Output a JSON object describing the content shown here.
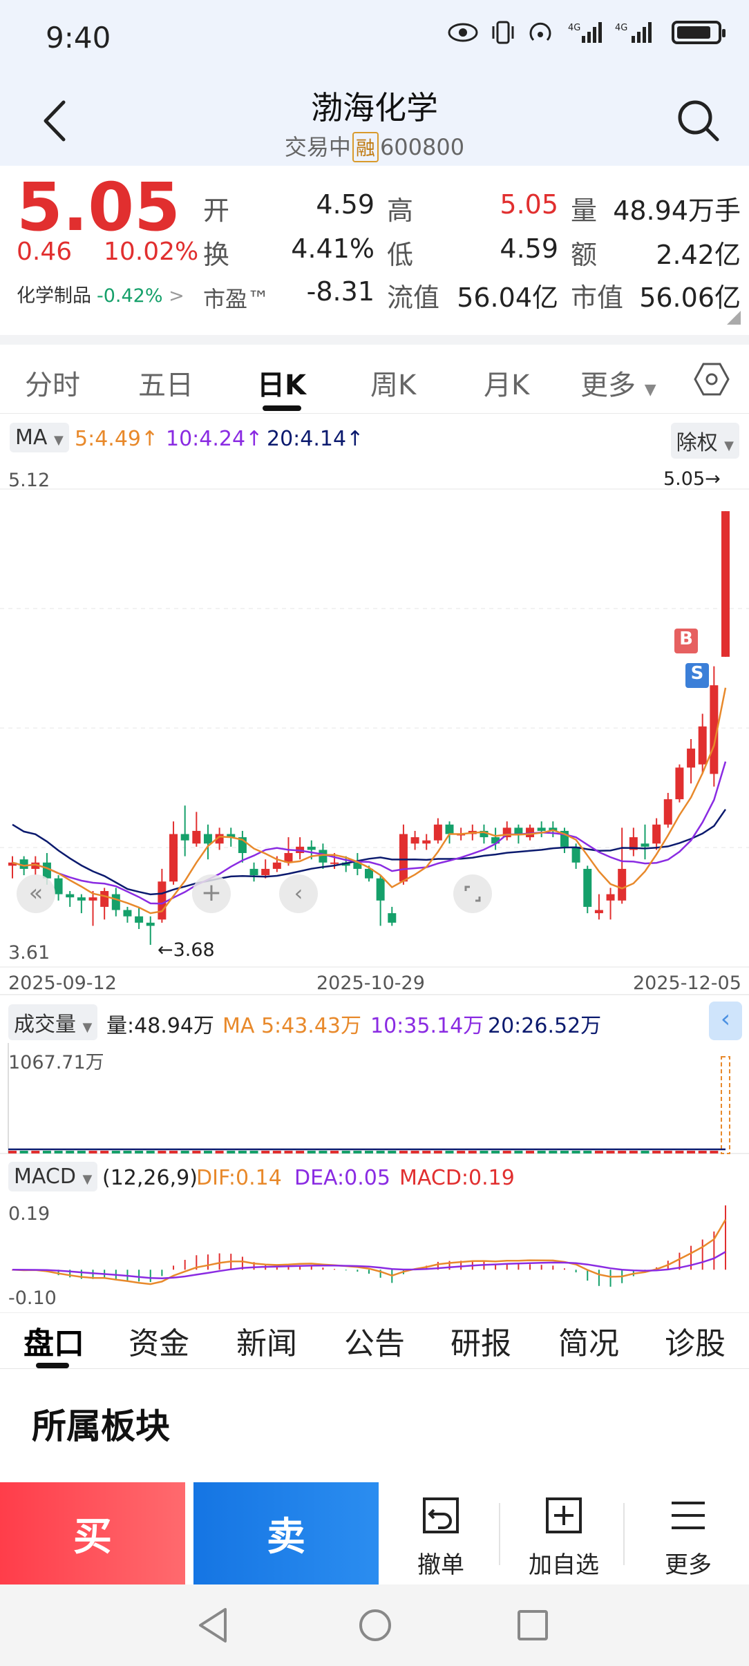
{
  "status": {
    "time": "9:40"
  },
  "header": {
    "title": "渤海化学",
    "status": "交易中",
    "badge": "融",
    "code": "600800"
  },
  "quote": {
    "price": "5.05",
    "change": "0.46",
    "change_pct": "10.02%",
    "sector_name": "化学制品",
    "sector_change": "-0.42%",
    "pe_label": "市盈™",
    "fields": [
      {
        "label": "开",
        "value": "4.59"
      },
      {
        "label": "高",
        "value": "5.05"
      },
      {
        "label": "量",
        "value": "48.94万手"
      },
      {
        "label": "换",
        "value": "4.41%"
      },
      {
        "label": "低",
        "value": "4.59"
      },
      {
        "label": "额",
        "value": "2.42亿"
      },
      {
        "label": "市盈™",
        "value": "-8.31"
      },
      {
        "label": "流值",
        "value": "56.04亿"
      },
      {
        "label": "市值",
        "value": "56.06亿"
      }
    ]
  },
  "period_tabs": [
    "分时",
    "五日",
    "日K",
    "周K",
    "月K",
    "更多"
  ],
  "active_period": "日K",
  "ma_row": {
    "selector": "MA",
    "ma5": "5:4.49↑",
    "ma10": "10:4.24↑",
    "ma20": "20:4.14↑",
    "adjust": "除权"
  },
  "kline": {
    "y_max": "5.12",
    "y_min": "3.61",
    "last_label": "5.05→",
    "low_label": "←3.68",
    "buy_marker": "B",
    "sell_marker": "S",
    "x_start": "2025-09-12",
    "x_mid": "2025-10-29",
    "x_end": "2025-12-05"
  },
  "volume": {
    "selector": "成交量",
    "vol": "量:48.94万",
    "ma5": "MA 5:43.43万",
    "ma10": "10:35.14万",
    "ma20": "20:26.52万",
    "y_max": "1067.71万"
  },
  "macd": {
    "selector": "MACD",
    "params": "(12,26,9)",
    "dif": "DIF:0.14",
    "dea": "DEA:0.05",
    "macd": "MACD:0.19",
    "y_max": "0.19",
    "y_min": "-0.10"
  },
  "bottom_tabs": [
    "盘口",
    "资金",
    "新闻",
    "公告",
    "研报",
    "简况",
    "诊股"
  ],
  "section_title": "所属板块",
  "trade": {
    "buy": "买",
    "sell": "卖",
    "cancel": "撤单",
    "add_fav": "加自选",
    "more": "更多"
  },
  "colors": {
    "up": "#e12f2f",
    "down": "#15a06a",
    "ma5": "#e8892b",
    "ma10": "#8a2be2",
    "ma20": "#0b1a6e",
    "buy_btn": "#ff3d4a",
    "sell_btn": "#1575e3"
  },
  "chart_data": {
    "type": "candlestick",
    "x_range": [
      "2025-09-12",
      "2025-12-05"
    ],
    "ylim": [
      3.61,
      5.12
    ],
    "candles": [
      [
        3.93,
        3.94,
        3.89,
        3.96
      ],
      [
        3.95,
        3.92,
        3.9,
        3.96
      ],
      [
        3.92,
        3.94,
        3.9,
        3.96
      ],
      [
        3.94,
        3.89,
        3.87,
        3.97
      ],
      [
        3.89,
        3.84,
        3.82,
        3.9
      ],
      [
        3.84,
        3.83,
        3.8,
        3.85
      ],
      [
        3.83,
        3.82,
        3.78,
        3.84
      ],
      [
        3.82,
        3.83,
        3.74,
        3.85
      ],
      [
        3.8,
        3.85,
        3.76,
        3.86
      ],
      [
        3.84,
        3.79,
        3.77,
        3.86
      ],
      [
        3.79,
        3.77,
        3.75,
        3.8
      ],
      [
        3.77,
        3.75,
        3.73,
        3.8
      ],
      [
        3.75,
        3.74,
        3.68,
        3.77
      ],
      [
        3.76,
        3.88,
        3.75,
        3.92
      ],
      [
        3.88,
        4.03,
        3.87,
        4.07
      ],
      [
        4.03,
        4.01,
        3.96,
        4.12
      ],
      [
        4.0,
        4.04,
        3.99,
        4.1
      ],
      [
        4.03,
        4.0,
        3.95,
        4.06
      ],
      [
        4.0,
        4.03,
        3.98,
        4.05
      ],
      [
        4.03,
        4.02,
        3.99,
        4.05
      ],
      [
        4.02,
        3.97,
        3.94,
        4.04
      ],
      [
        3.92,
        3.9,
        3.88,
        3.94
      ],
      [
        3.9,
        3.92,
        3.89,
        3.95
      ],
      [
        3.92,
        3.94,
        3.91,
        3.96
      ],
      [
        3.94,
        3.97,
        3.93,
        4.02
      ],
      [
        3.97,
        3.99,
        3.95,
        4.02
      ],
      [
        3.99,
        3.98,
        3.95,
        4.01
      ],
      [
        3.98,
        3.94,
        3.92,
        4.0
      ],
      [
        3.94,
        3.94,
        3.92,
        3.97
      ],
      [
        3.94,
        3.93,
        3.91,
        3.96
      ],
      [
        3.94,
        3.92,
        3.9,
        3.97
      ],
      [
        3.92,
        3.89,
        3.88,
        3.93
      ],
      [
        3.89,
        3.82,
        3.74,
        3.9
      ],
      [
        3.78,
        3.75,
        3.74,
        3.8
      ],
      [
        3.88,
        4.03,
        3.87,
        4.06
      ],
      [
        4.0,
        4.02,
        3.98,
        4.04
      ],
      [
        4.0,
        4.01,
        3.98,
        4.03
      ],
      [
        4.01,
        4.06,
        4.0,
        4.08
      ],
      [
        4.06,
        4.03,
        4.0,
        4.07
      ],
      [
        4.03,
        4.03,
        4.01,
        4.05
      ],
      [
        4.03,
        4.04,
        4.01,
        4.06
      ],
      [
        4.04,
        4.02,
        4.0,
        4.06
      ],
      [
        4.02,
        4.0,
        3.98,
        4.05
      ],
      [
        4.02,
        4.05,
        4.01,
        4.07
      ],
      [
        4.05,
        4.03,
        4.0,
        4.06
      ],
      [
        4.02,
        4.05,
        4.01,
        4.06
      ],
      [
        4.05,
        4.04,
        4.02,
        4.07
      ],
      [
        4.05,
        4.04,
        4.02,
        4.07
      ],
      [
        4.04,
        3.99,
        3.97,
        4.05
      ],
      [
        3.99,
        3.94,
        3.92,
        4.0
      ],
      [
        3.92,
        3.8,
        3.78,
        3.93
      ],
      [
        3.78,
        3.79,
        3.76,
        3.84
      ],
      [
        3.82,
        3.84,
        3.76,
        3.86
      ],
      [
        3.82,
        3.92,
        3.81,
        4.05
      ],
      [
        3.98,
        4.02,
        3.96,
        4.05
      ],
      [
        4.0,
        3.99,
        3.95,
        4.06
      ],
      [
        4.0,
        4.06,
        3.98,
        4.08
      ],
      [
        4.06,
        4.14,
        4.05,
        4.16
      ],
      [
        4.14,
        4.24,
        4.13,
        4.25
      ],
      [
        4.24,
        4.3,
        4.19,
        4.33
      ],
      [
        4.25,
        4.37,
        4.22,
        4.41
      ],
      [
        4.22,
        4.5,
        4.18,
        4.56
      ],
      [
        4.59,
        5.05,
        4.59,
        5.05
      ]
    ],
    "ma5_end": 4.49,
    "ma10_end": 4.24,
    "ma20_end": 4.14,
    "volume_max": 1067.71,
    "macd": {
      "ylim": [
        -0.1,
        0.19
      ],
      "dif_end": 0.14,
      "dea_end": 0.05,
      "macd_end": 0.19
    }
  }
}
